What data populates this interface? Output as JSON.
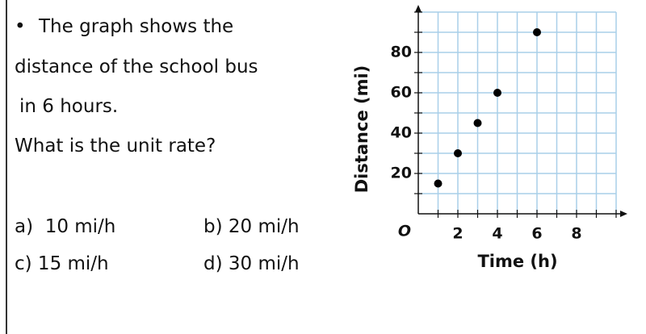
{
  "question": {
    "bullet": "•",
    "lines": [
      "The graph shows the",
      "distance of the school bus",
      "in 6 hours.",
      "What is the unit rate?"
    ]
  },
  "options": [
    "a)  10 mi/h",
    "b) 20 mi/h",
    "c) 15 mi/h",
    "d) 30 mi/h"
  ],
  "chart_data": {
    "type": "scatter",
    "x": [
      1,
      2,
      3,
      4,
      6
    ],
    "values": [
      15,
      30,
      45,
      60,
      90
    ],
    "xlabel": "Time (h)",
    "ylabel": "Distance (mi)",
    "origin_label": "O",
    "xlim": [
      0,
      10
    ],
    "ylim": [
      0,
      100
    ],
    "xticks": [
      2,
      4,
      6,
      8
    ],
    "yticks": [
      20,
      40,
      60,
      80
    ],
    "xminor": [
      1,
      3,
      5,
      7,
      9,
      10
    ],
    "yminor": [
      10,
      30,
      50,
      70,
      90,
      100
    ],
    "grid": true,
    "grid_color": "#a9cfe9",
    "color": "#000000"
  }
}
